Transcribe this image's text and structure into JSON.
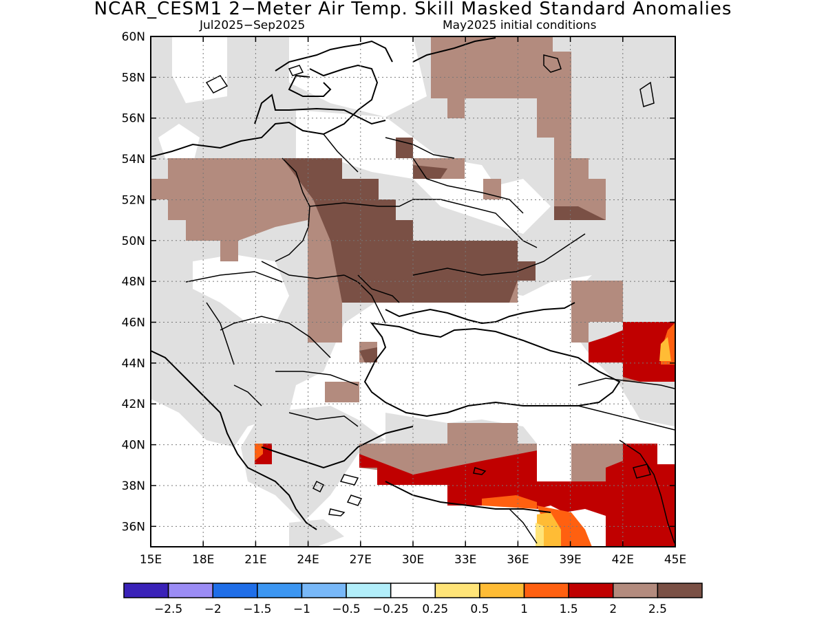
{
  "title": "NCAR_CESM1 2−Meter Air Temp. Skill Masked Standard Anomalies",
  "subtitle_left": "Jul2025−Sep2025",
  "subtitle_right": "May2025 initial conditions",
  "map": {
    "lon_range": [
      15,
      45
    ],
    "lat_range": [
      35,
      60
    ],
    "lat_labels": [
      "60N",
      "58N",
      "56N",
      "54N",
      "52N",
      "50N",
      "48N",
      "46N",
      "44N",
      "42N",
      "40N",
      "38N",
      "36N"
    ],
    "lon_labels": [
      "15E",
      "18E",
      "21E",
      "24E",
      "27E",
      "30E",
      "33E",
      "36E",
      "39E",
      "42E",
      "45E"
    ],
    "grid": true
  },
  "colorbar": {
    "labels": [
      "−2.5",
      "−2",
      "−1.5",
      "−1",
      "−0.5",
      "−0.25",
      "0.25",
      "0.5",
      "1",
      "1.5",
      "2",
      "2.5"
    ],
    "colors": [
      "#3a22b8",
      "#9b8cf5",
      "#1f6ee8",
      "#3c96f2",
      "#78b8f8",
      "#b2eefa",
      "#ffffff",
      "#ffe478",
      "#ffbc35",
      "#ff6010",
      "#c00000",
      "#b38b7e",
      "#7a5045"
    ]
  },
  "legend_colors": {
    "masked": "#e0e0e0",
    "anom_2": "#b38b7e",
    "anom_25": "#7a5045",
    "anom_15": "#c00000",
    "anom_1": "#ff6010",
    "anom_05": "#ffbc35",
    "anom_025": "#ffe478"
  }
}
